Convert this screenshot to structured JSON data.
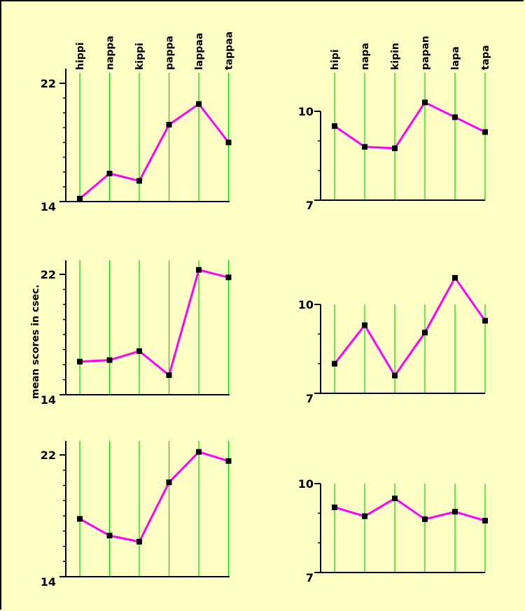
{
  "ylabel": "mean scores in csec.",
  "colors": {
    "background": "#ffffc6",
    "line": "#ff00ff",
    "grid": "#00dd00",
    "marker": "#000000"
  },
  "chart_data": [
    {
      "type": "line",
      "position": "top-left",
      "categories": [
        "hippi",
        "nappa",
        "kippi",
        "pappa",
        "lappaa",
        "tappaa"
      ],
      "values": [
        14.2,
        15.9,
        15.4,
        19.2,
        20.6,
        18.0
      ],
      "ylim": [
        14,
        22
      ],
      "yticks": [
        "14",
        "22"
      ]
    },
    {
      "type": "line",
      "position": "top-right",
      "categories": [
        "hipi",
        "napa",
        "kipin",
        "papan",
        "lapa",
        "tapa"
      ],
      "values": [
        9.5,
        8.8,
        8.75,
        10.3,
        9.8,
        9.3
      ],
      "ylim": [
        7,
        10
      ],
      "yticks": [
        "7",
        "10"
      ]
    },
    {
      "type": "line",
      "position": "middle-left",
      "categories": [
        "hippi",
        "nappa",
        "kippi",
        "pappa",
        "lappaa",
        "tappaa"
      ],
      "values": [
        16.2,
        16.3,
        16.9,
        15.3,
        22.3,
        21.8
      ],
      "ylim": [
        14,
        22
      ],
      "yticks": [
        "14",
        "22"
      ]
    },
    {
      "type": "line",
      "position": "middle-right",
      "categories": [
        "hipi",
        "napa",
        "kipin",
        "papan",
        "lapa",
        "tapa"
      ],
      "values": [
        8.0,
        9.3,
        7.6,
        9.05,
        10.9,
        9.45
      ],
      "ylim": [
        7,
        10
      ],
      "yticks": [
        "7",
        "10"
      ]
    },
    {
      "type": "line",
      "position": "bottom-left",
      "categories": [
        "hippi",
        "nappa",
        "kippi",
        "pappa",
        "lappaa",
        "tappaa"
      ],
      "values": [
        17.8,
        16.7,
        16.3,
        20.2,
        22.2,
        21.6
      ],
      "ylim": [
        14,
        22
      ],
      "yticks": [
        "14",
        "22"
      ]
    },
    {
      "type": "line",
      "position": "bottom-right",
      "categories": [
        "hipi",
        "napa",
        "kipin",
        "papan",
        "lapa",
        "tapa"
      ],
      "values": [
        9.2,
        8.9,
        9.5,
        8.8,
        9.05,
        8.75
      ],
      "ylim": [
        7,
        10
      ],
      "yticks": [
        "7",
        "10"
      ]
    }
  ]
}
